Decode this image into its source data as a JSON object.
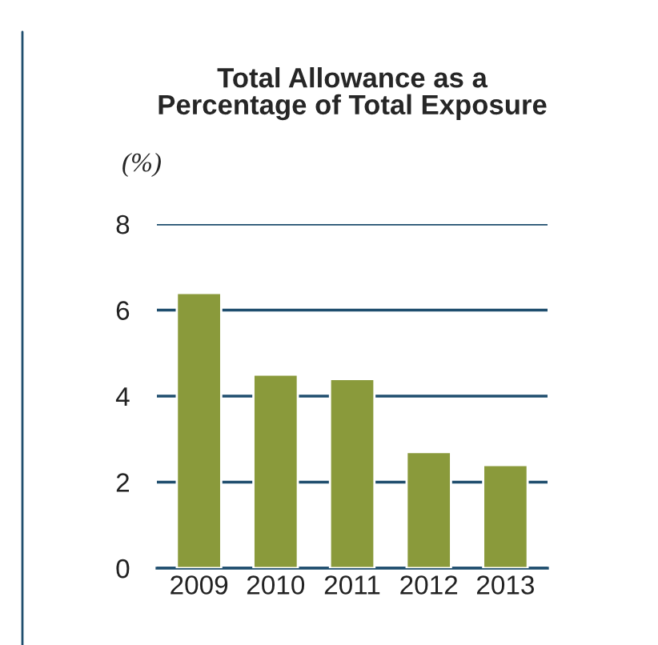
{
  "chart_data": {
    "type": "bar",
    "title": "Total Allowance as a\nPercentage of Total Exposure",
    "ylabel": "(%)",
    "categories": [
      "2009",
      "2010",
      "2011",
      "2012",
      "2013"
    ],
    "values": [
      6.4,
      4.5,
      4.4,
      2.7,
      2.4
    ],
    "color": "#8a9a3b",
    "ylim": [
      0,
      8
    ],
    "yticks": [
      0,
      2,
      4,
      6,
      8
    ],
    "grid": "y"
  }
}
